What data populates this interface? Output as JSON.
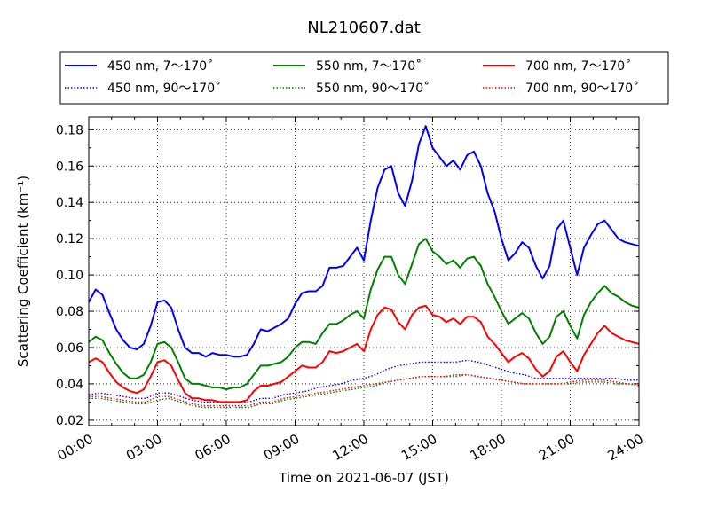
{
  "chart_data": {
    "type": "line",
    "title": "NL210607.dat",
    "xlabel": "Time on 2021-06-07 (JST)",
    "ylabel": "Scattering Coefficient (km⁻¹)",
    "xlim": [
      0,
      24
    ],
    "ylim": [
      0.017,
      0.187
    ],
    "x_ticks": [
      0,
      3,
      6,
      9,
      12,
      15,
      18,
      21,
      24
    ],
    "x_tick_labels": [
      "00:00",
      "03:00",
      "06:00",
      "09:00",
      "12:00",
      "15:00",
      "18:00",
      "21:00",
      "24:00"
    ],
    "y_ticks": [
      0.02,
      0.04,
      0.06,
      0.08,
      0.1,
      0.12,
      0.14,
      0.16,
      0.18
    ],
    "y_tick_labels": [
      "0.02",
      "0.04",
      "0.06",
      "0.08",
      "0.10",
      "0.12",
      "0.14",
      "0.16",
      "0.18"
    ],
    "grid": true,
    "legend_placement": "top, above plot",
    "series": [
      {
        "name": "450 nm, 7～170˚",
        "color": "#0000ff",
        "style": "solid",
        "x": [
          0,
          0.3,
          0.6,
          0.9,
          1.2,
          1.5,
          1.8,
          2.1,
          2.4,
          2.7,
          3.0,
          3.3,
          3.6,
          3.9,
          4.2,
          4.5,
          4.8,
          5.1,
          5.4,
          5.7,
          6.0,
          6.3,
          6.6,
          6.9,
          7.2,
          7.5,
          7.8,
          8.1,
          8.4,
          8.7,
          9.0,
          9.3,
          9.6,
          9.9,
          10.2,
          10.5,
          10.8,
          11.1,
          11.4,
          11.7,
          12.0,
          12.3,
          12.6,
          12.9,
          13.2,
          13.5,
          13.8,
          14.1,
          14.4,
          14.7,
          15.0,
          15.3,
          15.6,
          15.9,
          16.2,
          16.5,
          16.8,
          17.1,
          17.4,
          17.7,
          18.0,
          18.3,
          18.6,
          18.9,
          19.2,
          19.5,
          19.8,
          20.1,
          20.4,
          20.7,
          21.0,
          21.3,
          21.6,
          21.9,
          22.2,
          22.5,
          22.8,
          23.1,
          23.4,
          23.7,
          24.0
        ],
        "y": [
          0.085,
          0.092,
          0.089,
          0.079,
          0.07,
          0.064,
          0.06,
          0.059,
          0.062,
          0.072,
          0.085,
          0.086,
          0.082,
          0.07,
          0.06,
          0.057,
          0.057,
          0.055,
          0.057,
          0.056,
          0.056,
          0.055,
          0.055,
          0.056,
          0.062,
          0.07,
          0.069,
          0.071,
          0.073,
          0.076,
          0.084,
          0.09,
          0.091,
          0.091,
          0.094,
          0.104,
          0.104,
          0.105,
          0.11,
          0.115,
          0.108,
          0.13,
          0.148,
          0.158,
          0.16,
          0.145,
          0.138,
          0.152,
          0.172,
          0.182,
          0.17,
          0.165,
          0.16,
          0.163,
          0.158,
          0.166,
          0.168,
          0.16,
          0.145,
          0.135,
          0.12,
          0.108,
          0.112,
          0.118,
          0.115,
          0.105,
          0.098,
          0.105,
          0.125,
          0.13,
          0.115,
          0.1,
          0.115,
          0.122,
          0.128,
          0.13,
          0.125,
          0.12,
          0.118,
          0.117,
          0.116
        ]
      },
      {
        "name": "550 nm, 7～170˚",
        "color": "#008000",
        "style": "solid",
        "x": [
          0,
          0.3,
          0.6,
          0.9,
          1.2,
          1.5,
          1.8,
          2.1,
          2.4,
          2.7,
          3.0,
          3.3,
          3.6,
          3.9,
          4.2,
          4.5,
          4.8,
          5.1,
          5.4,
          5.7,
          6.0,
          6.3,
          6.6,
          6.9,
          7.2,
          7.5,
          7.8,
          8.1,
          8.4,
          8.7,
          9.0,
          9.3,
          9.6,
          9.9,
          10.2,
          10.5,
          10.8,
          11.1,
          11.4,
          11.7,
          12.0,
          12.3,
          12.6,
          12.9,
          13.2,
          13.5,
          13.8,
          14.1,
          14.4,
          14.7,
          15.0,
          15.3,
          15.6,
          15.9,
          16.2,
          16.5,
          16.8,
          17.1,
          17.4,
          17.7,
          18.0,
          18.3,
          18.6,
          18.9,
          19.2,
          19.5,
          19.8,
          20.1,
          20.4,
          20.7,
          21.0,
          21.3,
          21.6,
          21.9,
          22.2,
          22.5,
          22.8,
          23.1,
          23.4,
          23.7,
          24.0
        ],
        "y": [
          0.063,
          0.066,
          0.064,
          0.057,
          0.051,
          0.046,
          0.043,
          0.043,
          0.045,
          0.052,
          0.062,
          0.063,
          0.06,
          0.052,
          0.043,
          0.04,
          0.04,
          0.039,
          0.038,
          0.038,
          0.037,
          0.038,
          0.038,
          0.04,
          0.045,
          0.05,
          0.05,
          0.051,
          0.052,
          0.055,
          0.06,
          0.063,
          0.063,
          0.062,
          0.068,
          0.073,
          0.073,
          0.075,
          0.078,
          0.08,
          0.076,
          0.092,
          0.103,
          0.11,
          0.11,
          0.1,
          0.095,
          0.106,
          0.117,
          0.12,
          0.113,
          0.11,
          0.106,
          0.108,
          0.104,
          0.109,
          0.11,
          0.105,
          0.095,
          0.088,
          0.08,
          0.073,
          0.076,
          0.079,
          0.076,
          0.068,
          0.062,
          0.066,
          0.077,
          0.08,
          0.072,
          0.065,
          0.078,
          0.085,
          0.09,
          0.094,
          0.09,
          0.088,
          0.085,
          0.083,
          0.082
        ]
      },
      {
        "name": "700 nm, 7～170˚",
        "color": "#ff0000",
        "style": "solid",
        "x": [
          0,
          0.3,
          0.6,
          0.9,
          1.2,
          1.5,
          1.8,
          2.1,
          2.4,
          2.7,
          3.0,
          3.3,
          3.6,
          3.9,
          4.2,
          4.5,
          4.8,
          5.1,
          5.4,
          5.7,
          6.0,
          6.3,
          6.6,
          6.9,
          7.2,
          7.5,
          7.8,
          8.1,
          8.4,
          8.7,
          9.0,
          9.3,
          9.6,
          9.9,
          10.2,
          10.5,
          10.8,
          11.1,
          11.4,
          11.7,
          12.0,
          12.3,
          12.6,
          12.9,
          13.2,
          13.5,
          13.8,
          14.1,
          14.4,
          14.7,
          15.0,
          15.3,
          15.6,
          15.9,
          16.2,
          16.5,
          16.8,
          17.1,
          17.4,
          17.7,
          18.0,
          18.3,
          18.6,
          18.9,
          19.2,
          19.5,
          19.8,
          20.1,
          20.4,
          20.7,
          21.0,
          21.3,
          21.6,
          21.9,
          22.2,
          22.5,
          22.8,
          23.1,
          23.4,
          23.7,
          24.0
        ],
        "y": [
          0.052,
          0.054,
          0.052,
          0.046,
          0.041,
          0.038,
          0.036,
          0.035,
          0.037,
          0.044,
          0.052,
          0.053,
          0.05,
          0.042,
          0.035,
          0.032,
          0.032,
          0.031,
          0.031,
          0.03,
          0.03,
          0.03,
          0.03,
          0.031,
          0.036,
          0.039,
          0.039,
          0.04,
          0.041,
          0.044,
          0.047,
          0.05,
          0.049,
          0.049,
          0.052,
          0.058,
          0.057,
          0.058,
          0.06,
          0.062,
          0.058,
          0.07,
          0.078,
          0.082,
          0.081,
          0.074,
          0.07,
          0.078,
          0.082,
          0.083,
          0.078,
          0.077,
          0.074,
          0.076,
          0.073,
          0.077,
          0.077,
          0.074,
          0.066,
          0.062,
          0.057,
          0.052,
          0.055,
          0.057,
          0.054,
          0.048,
          0.044,
          0.047,
          0.055,
          0.058,
          0.052,
          0.047,
          0.056,
          0.062,
          0.068,
          0.072,
          0.068,
          0.066,
          0.064,
          0.063,
          0.062
        ]
      },
      {
        "name": "450 nm, 90～170˚",
        "color": "#0000ff",
        "style": "dotted",
        "x": [
          0,
          0.5,
          1.0,
          1.5,
          2.0,
          2.5,
          3.0,
          3.5,
          4.0,
          4.5,
          5.0,
          5.5,
          6.0,
          6.5,
          7.0,
          7.5,
          8.0,
          8.5,
          9.0,
          9.5,
          10.0,
          10.5,
          11.0,
          11.5,
          12.0,
          12.5,
          13.0,
          13.5,
          14.0,
          14.5,
          15.0,
          15.5,
          16.0,
          16.5,
          17.0,
          17.5,
          18.0,
          18.5,
          19.0,
          19.5,
          20.0,
          20.5,
          21.0,
          21.5,
          22.0,
          22.5,
          23.0,
          23.5,
          24.0
        ],
        "y": [
          0.034,
          0.035,
          0.034,
          0.033,
          0.032,
          0.032,
          0.035,
          0.035,
          0.033,
          0.031,
          0.03,
          0.03,
          0.03,
          0.03,
          0.03,
          0.032,
          0.032,
          0.034,
          0.035,
          0.036,
          0.038,
          0.039,
          0.04,
          0.042,
          0.043,
          0.045,
          0.048,
          0.05,
          0.051,
          0.052,
          0.052,
          0.052,
          0.052,
          0.053,
          0.052,
          0.05,
          0.048,
          0.046,
          0.045,
          0.043,
          0.043,
          0.043,
          0.043,
          0.043,
          0.043,
          0.043,
          0.043,
          0.042,
          0.042
        ]
      },
      {
        "name": "550 nm, 90～170˚",
        "color": "#008000",
        "style": "dotted",
        "x": [
          0,
          0.5,
          1.0,
          1.5,
          2.0,
          2.5,
          3.0,
          3.5,
          4.0,
          4.5,
          5.0,
          5.5,
          6.0,
          6.5,
          7.0,
          7.5,
          8.0,
          8.5,
          9.0,
          9.5,
          10.0,
          10.5,
          11.0,
          11.5,
          12.0,
          12.5,
          13.0,
          13.5,
          14.0,
          14.5,
          15.0,
          15.5,
          16.0,
          16.5,
          17.0,
          17.5,
          18.0,
          18.5,
          19.0,
          19.5,
          20.0,
          20.5,
          21.0,
          21.5,
          22.0,
          22.5,
          23.0,
          23.5,
          24.0
        ],
        "y": [
          0.032,
          0.032,
          0.031,
          0.03,
          0.029,
          0.029,
          0.031,
          0.032,
          0.03,
          0.028,
          0.027,
          0.027,
          0.027,
          0.027,
          0.027,
          0.029,
          0.029,
          0.031,
          0.032,
          0.033,
          0.034,
          0.035,
          0.036,
          0.037,
          0.038,
          0.039,
          0.041,
          0.042,
          0.043,
          0.044,
          0.044,
          0.044,
          0.044,
          0.045,
          0.044,
          0.043,
          0.042,
          0.041,
          0.04,
          0.04,
          0.04,
          0.04,
          0.04,
          0.041,
          0.041,
          0.041,
          0.04,
          0.04,
          0.04
        ]
      },
      {
        "name": "700 nm, 90～170˚",
        "color": "#ff0000",
        "style": "dotted",
        "x": [
          0,
          0.5,
          1.0,
          1.5,
          2.0,
          2.5,
          3.0,
          3.5,
          4.0,
          4.5,
          5.0,
          5.5,
          6.0,
          6.5,
          7.0,
          7.5,
          8.0,
          8.5,
          9.0,
          9.5,
          10.0,
          10.5,
          11.0,
          11.5,
          12.0,
          12.5,
          13.0,
          13.5,
          14.0,
          14.5,
          15.0,
          15.5,
          16.0,
          16.5,
          17.0,
          17.5,
          18.0,
          18.5,
          19.0,
          19.5,
          20.0,
          20.5,
          21.0,
          21.5,
          22.0,
          22.5,
          23.0,
          23.5,
          24.0
        ],
        "y": [
          0.033,
          0.033,
          0.032,
          0.031,
          0.03,
          0.03,
          0.033,
          0.033,
          0.031,
          0.029,
          0.028,
          0.028,
          0.028,
          0.028,
          0.028,
          0.03,
          0.03,
          0.032,
          0.033,
          0.034,
          0.035,
          0.036,
          0.037,
          0.038,
          0.039,
          0.04,
          0.041,
          0.042,
          0.043,
          0.044,
          0.044,
          0.044,
          0.045,
          0.045,
          0.044,
          0.043,
          0.042,
          0.041,
          0.04,
          0.04,
          0.04,
          0.04,
          0.041,
          0.042,
          0.042,
          0.042,
          0.041,
          0.04,
          0.039
        ]
      }
    ]
  }
}
